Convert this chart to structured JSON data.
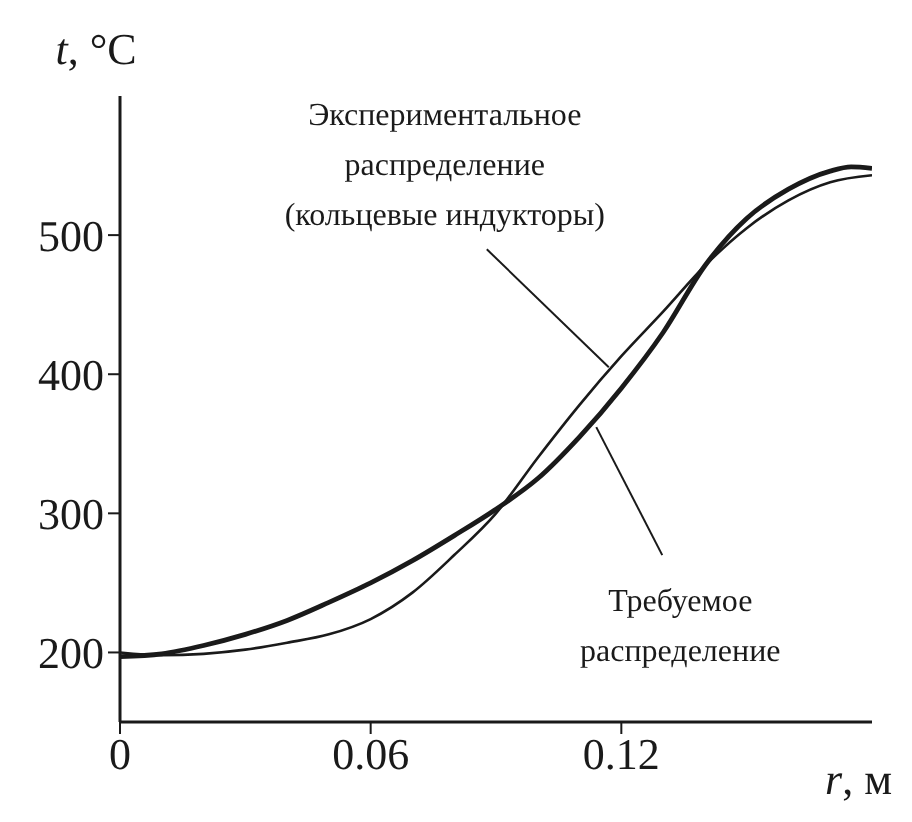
{
  "chart_data": {
    "type": "line",
    "xlabel": "r, м",
    "ylabel": "t, °C",
    "xlim": [
      0,
      0.18
    ],
    "xticks": [
      0,
      0.06,
      0.12
    ],
    "ylim": [
      150,
      600
    ],
    "yticks": [
      200,
      300,
      400,
      500
    ],
    "grid": false,
    "marker": "none",
    "line_style": "solid",
    "series": [
      {
        "color": "#1a1a1a",
        "x": [
          0,
          0.01,
          0.02,
          0.03,
          0.04,
          0.05,
          0.06,
          0.07,
          0.08,
          0.09,
          0.1,
          0.11,
          0.12,
          0.13,
          0.14,
          0.15,
          0.16,
          0.17,
          0.175,
          0.18
        ],
        "values": [
          197,
          199,
          205,
          213,
          223,
          236,
          250,
          266,
          284,
          303,
          325,
          355,
          390,
          430,
          478,
          512,
          533,
          546,
          549,
          548
        ]
      },
      {
        "color": "#1a1a1a",
        "x": [
          0,
          0.01,
          0.02,
          0.03,
          0.04,
          0.05,
          0.06,
          0.07,
          0.08,
          0.09,
          0.1,
          0.11,
          0.12,
          0.13,
          0.14,
          0.15,
          0.16,
          0.17,
          0.18
        ],
        "values": [
          200,
          198,
          199,
          202,
          207,
          213,
          224,
          243,
          270,
          300,
          340,
          378,
          413,
          445,
          478,
          505,
          525,
          538,
          543
        ]
      }
    ],
    "annotations": [
      {
        "text": "Экспериментальное\nраспределение\n(кольцевые индукторы)",
        "x": 0.117,
        "y": 405
      },
      {
        "text": "Требуемое\nраспределение",
        "x": 0.114,
        "y": 362
      }
    ]
  }
}
